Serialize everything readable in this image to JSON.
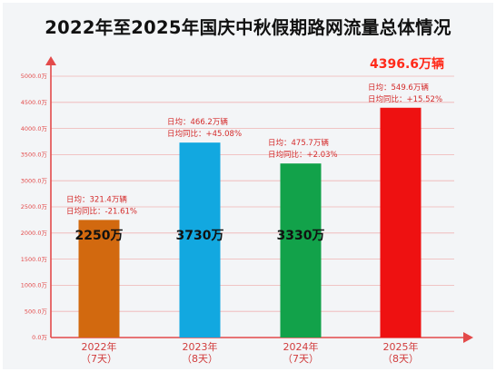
{
  "chart_data": {
    "type": "bar",
    "title": "2022年至2025年国庆中秋假期路网流量总体情况",
    "categories": [
      {
        "year": "2022年",
        "days": "（7天）"
      },
      {
        "year": "2023年",
        "days": "（8天）"
      },
      {
        "year": "2024年",
        "days": "（7天）"
      },
      {
        "year": "2025年",
        "days": "（8天）"
      }
    ],
    "values": [
      2250,
      3730,
      3330,
      4396.6
    ],
    "value_labels": [
      "2250万",
      "3730万",
      "3330万",
      ""
    ],
    "bar_colors": [
      "#d2690f",
      "#12a8e0",
      "#12a24a",
      "#ee1111"
    ],
    "annotations": [
      {
        "headline": "",
        "daily": "日均：321.4万辆",
        "yoy": "日均同比：-21.61%"
      },
      {
        "headline": "",
        "daily": "日均：466.2万辆",
        "yoy": "日均同比：+45.08%"
      },
      {
        "headline": "",
        "daily": "日均：475.7万辆",
        "yoy": "日均同比：+2.03%"
      },
      {
        "headline": "4396.6万辆",
        "daily": "日均：549.6万辆",
        "yoy": "日均同比：+15.52%"
      }
    ],
    "yticks": [
      "0.0万",
      "500.0万",
      "1000.0万",
      "1500.0万",
      "2000.0万",
      "2500.0万",
      "3000.0万",
      "3500.0万",
      "4000.0万",
      "4500.0万",
      "5000.0万"
    ],
    "ylim": [
      0,
      5000
    ],
    "grid": true,
    "axis_color": "#e34a4a"
  }
}
